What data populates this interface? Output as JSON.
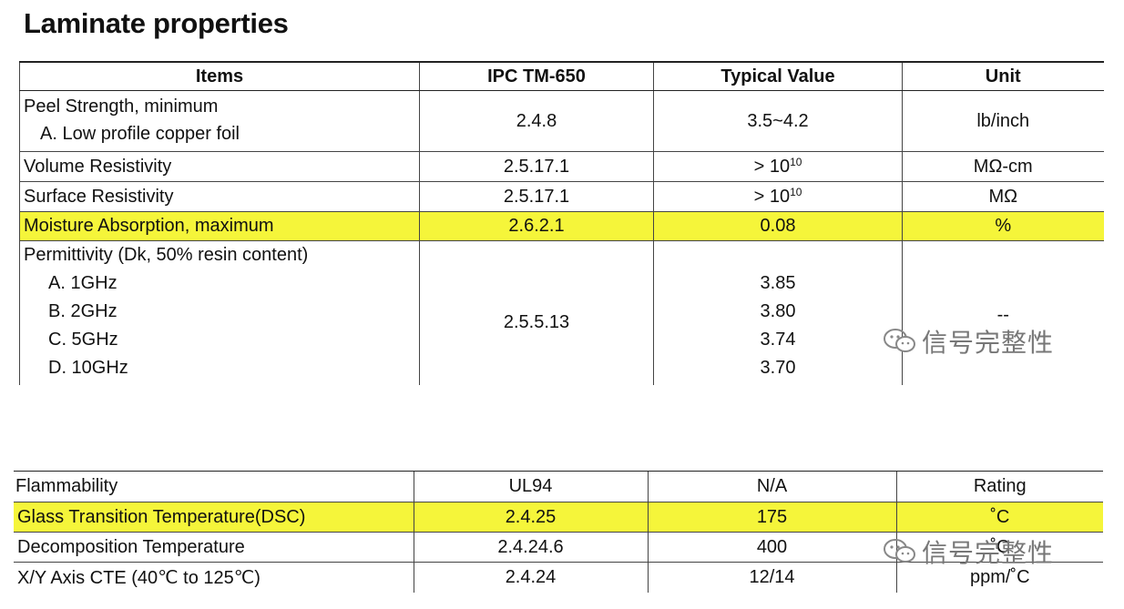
{
  "title": "Laminate properties",
  "watermark": "信号完整性",
  "headers": {
    "items": "Items",
    "ipc": "IPC TM-650",
    "typical": "Typical Value",
    "unit": "Unit"
  },
  "peel": {
    "line1": "Peel Strength, minimum",
    "line2": "A.  Low profile copper foil",
    "ipc": "2.4.8",
    "value": "3.5~4.2",
    "unit": "lb/inch"
  },
  "volume": {
    "item": "Volume Resistivity",
    "ipc": "2.5.17.1",
    "value_prefix": "> 10",
    "value_exp": "10",
    "unit": "MΩ-cm"
  },
  "surface": {
    "item": "Surface Resistivity",
    "ipc": "2.5.17.1",
    "value_prefix": "> 10",
    "value_exp": "10",
    "unit": "MΩ"
  },
  "moisture": {
    "item": "Moisture Absorption, maximum",
    "ipc": "2.6.2.1",
    "value": "0.08",
    "unit": "%"
  },
  "permittivity": {
    "item": "Permittivity (Dk, 50% resin content)",
    "ipc": "2.5.5.13",
    "unit": "--",
    "subs": [
      {
        "label": "A. 1GHz",
        "value": "3.85"
      },
      {
        "label": "B. 2GHz",
        "value": "3.80"
      },
      {
        "label": "C. 5GHz",
        "value": "3.74"
      },
      {
        "label": "D. 10GHz",
        "value": "3.70"
      }
    ]
  },
  "table2": [
    {
      "item": "Flammability",
      "ipc": "UL94",
      "value": "N/A",
      "unit": "Rating"
    },
    {
      "item": "Glass Transition Temperature(DSC)",
      "ipc": "2.4.25",
      "value": "175",
      "unit": "˚C"
    },
    {
      "item": "Decomposition Temperature",
      "ipc": "2.4.24.6",
      "value": "400",
      "unit": "˚C"
    },
    {
      "item": "X/Y Axis CTE (40℃ to 125℃)",
      "ipc": "2.4.24",
      "value": "12/14",
      "unit": "ppm/˚C"
    }
  ],
  "colors": {
    "highlight": "#f5f53a",
    "watermark": "#777777"
  }
}
